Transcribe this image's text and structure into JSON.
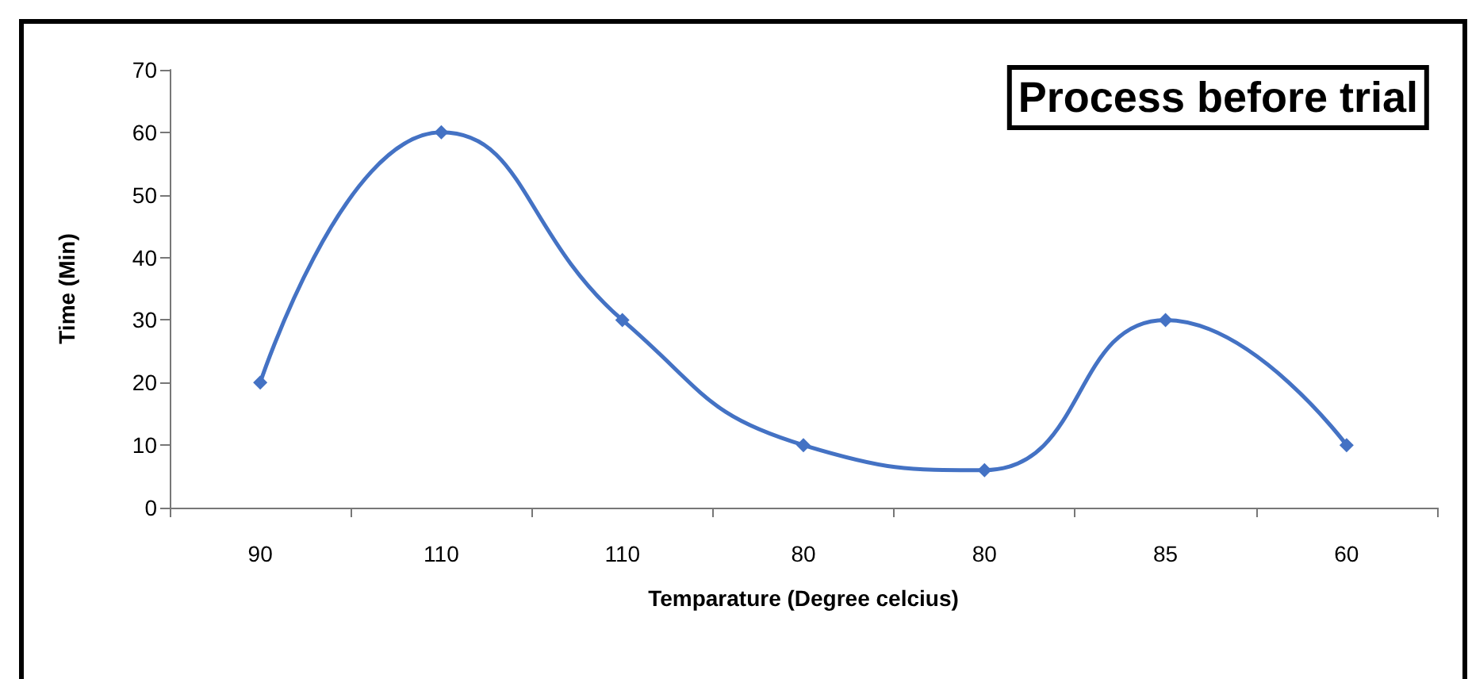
{
  "chart_data": {
    "type": "line",
    "title": "Process before trial",
    "xlabel": "Temparature (Degree celcius)",
    "ylabel": "Time (Min)",
    "categories": [
      "90",
      "110",
      "110",
      "80",
      "80",
      "85",
      "60"
    ],
    "series": [
      {
        "color": "#4472c4",
        "values": [
          20,
          60,
          30,
          10,
          6,
          30,
          10
        ]
      }
    ],
    "ylim": [
      0,
      70
    ],
    "yticks": [
      0,
      10,
      20,
      30,
      40,
      50,
      60,
      70
    ],
    "grid": false,
    "marker": "diamond",
    "line_style": "solid"
  }
}
